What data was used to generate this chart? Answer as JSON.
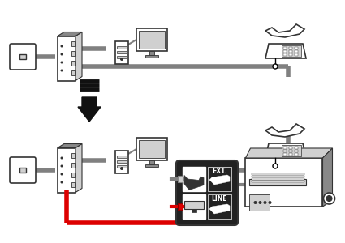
{
  "bg_color": "#ffffff",
  "line_color": "#808080",
  "red_color": "#dd0000",
  "black_color": "#000000",
  "dark_gray": "#333333",
  "light_gray": "#d0d0d0",
  "mid_gray": "#888888",
  "cable_gray": "#808080",
  "arrow_color": "#111111",
  "panel_bg": "#222222"
}
